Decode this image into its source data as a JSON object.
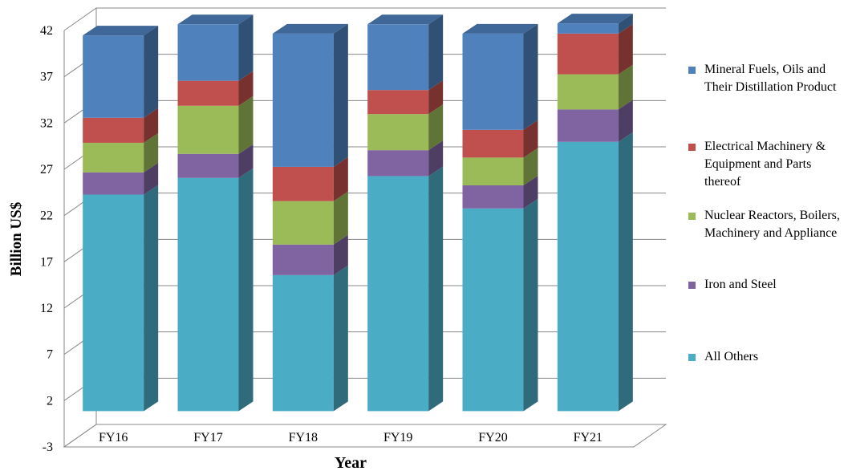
{
  "chart_data": {
    "type": "bar3d_stacked",
    "y_label": "Billion US$",
    "x_label": "Year",
    "categories": [
      "FY16",
      "FY17",
      "FY18",
      "FY19",
      "FY20",
      "FY21"
    ],
    "series": [
      {
        "name": "All Others",
        "color": "#4bacc6",
        "values": [
          23.4,
          25.2,
          14.7,
          25.4,
          21.9,
          29.1
        ]
      },
      {
        "name": "Iron and Steel",
        "color": "#8064a2",
        "values": [
          2.4,
          2.6,
          3.3,
          2.8,
          2.5,
          3.5
        ]
      },
      {
        "name": "Nuclear Reactors, Boilers, Machinery and Appliance",
        "color": "#9bbb59",
        "values": [
          3.2,
          5.2,
          4.7,
          3.9,
          3.0,
          3.8
        ]
      },
      {
        "name": "Electrical Machinery & Equipment and Parts thereof",
        "color": "#c0504d",
        "values": [
          2.7,
          2.7,
          3.7,
          2.6,
          3.0,
          4.4
        ]
      },
      {
        "name": "Mineral Fuels, Oils and Their Distillation Product",
        "color": "#4f81bd",
        "values": [
          8.9,
          6.1,
          14.4,
          7.1,
          10.4,
          1.1
        ]
      }
    ],
    "ylim": [
      -3,
      42
    ],
    "yticks": [
      -3,
      2,
      7,
      12,
      17,
      22,
      27,
      32,
      37,
      42
    ],
    "grid": true
  }
}
